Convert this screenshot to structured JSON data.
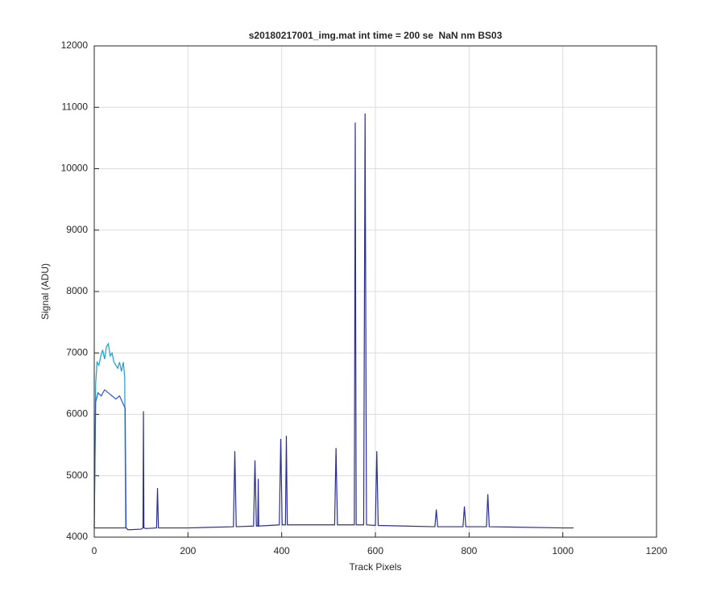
{
  "chart_data": {
    "type": "line",
    "title": "s20180217001_img.mat int time = 200 se  NaN nm BS03",
    "x_label": "Track Pixels",
    "y_label": "Signal (ADU)",
    "xlim": [
      0,
      1200
    ],
    "xticks": [
      0,
      200,
      400,
      600,
      800,
      1000,
      1200
    ],
    "ylim": [
      4000,
      12000
    ],
    "yticks": [
      4000,
      5000,
      6000,
      7000,
      8000,
      9000,
      10000,
      11000,
      12000
    ],
    "grid": true,
    "series": [
      {
        "color": "#1a9fd0",
        "x": [
          0,
          3,
          6,
          10,
          14,
          18,
          22,
          26,
          30,
          34,
          38,
          42,
          46,
          50,
          54,
          58,
          62,
          65,
          67
        ],
        "values": [
          4150,
          6500,
          6850,
          6800,
          6950,
          7050,
          6900,
          7100,
          7150,
          6950,
          7000,
          6850,
          6800,
          6750,
          6850,
          6700,
          6850,
          6600,
          4150
        ]
      },
      {
        "color": "#2f55d4",
        "x": [
          0,
          3,
          8,
          15,
          22,
          30,
          38,
          46,
          54,
          60,
          66,
          68
        ],
        "values": [
          4150,
          6200,
          6350,
          6300,
          6400,
          6350,
          6300,
          6250,
          6300,
          6200,
          6100,
          4150
        ]
      },
      {
        "color": "#2b2f8f",
        "x": [
          0,
          68,
          72,
          100,
          104,
          105,
          106,
          110,
          133,
          135,
          137,
          200,
          297,
          300,
          303,
          340,
          343,
          346,
          349,
          350,
          351,
          395,
          398,
          401,
          408,
          410,
          412,
          513,
          516,
          519,
          555,
          557,
          559,
          575,
          578,
          581,
          600,
          603,
          606,
          727,
          730,
          733,
          787,
          790,
          793,
          837,
          840,
          843,
          1000,
          1023
        ],
        "values": [
          4150,
          4150,
          4120,
          4130,
          4150,
          6050,
          4150,
          4140,
          4150,
          4800,
          4150,
          4150,
          4170,
          5400,
          4170,
          4180,
          5250,
          4180,
          4180,
          4950,
          4180,
          4200,
          5600,
          4200,
          4200,
          5650,
          4200,
          4200,
          5450,
          4200,
          4200,
          10750,
          4200,
          4200,
          10900,
          4200,
          4190,
          5400,
          4190,
          4170,
          4450,
          4170,
          4170,
          4500,
          4170,
          4170,
          4700,
          4170,
          4150,
          4150
        ]
      }
    ]
  }
}
